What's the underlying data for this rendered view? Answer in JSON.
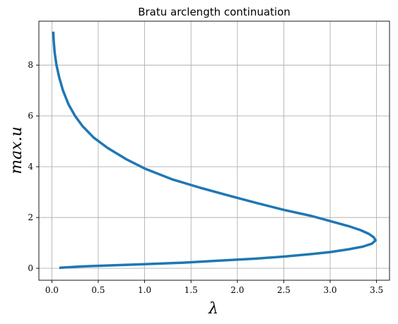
{
  "chart_data": {
    "type": "line",
    "title": "Bratu arclength continuation",
    "xlabel": "λ",
    "ylabel": "max.u",
    "xlim": [
      -0.14,
      3.64
    ],
    "ylim": [
      -0.47,
      9.73
    ],
    "xticks": [
      0.0,
      0.5,
      1.0,
      1.5,
      2.0,
      2.5,
      3.0,
      3.5
    ],
    "xtick_labels": [
      "0.0",
      "0.5",
      "1.0",
      "1.5",
      "2.0",
      "2.5",
      "3.0",
      "3.5"
    ],
    "yticks": [
      0,
      2,
      4,
      6,
      8
    ],
    "ytick_labels": [
      "0",
      "2",
      "4",
      "6",
      "8"
    ],
    "grid": true,
    "line_color": "#1f77b4",
    "series": [
      {
        "x": [
          0.08,
          0.3,
          0.6,
          1.0,
          1.4,
          1.8,
          2.2,
          2.5,
          2.8,
          3.0,
          3.2,
          3.35,
          3.45,
          3.49,
          3.47,
          3.42,
          3.33,
          3.2,
          3.0,
          2.8,
          2.5,
          2.2,
          1.9,
          1.6,
          1.3,
          1.0,
          0.8,
          0.6,
          0.45,
          0.33,
          0.25,
          0.18,
          0.12,
          0.08,
          0.05,
          0.03,
          0.02,
          0.015
        ],
        "y": [
          0.02,
          0.07,
          0.11,
          0.16,
          0.22,
          0.3,
          0.38,
          0.46,
          0.56,
          0.64,
          0.75,
          0.85,
          0.97,
          1.1,
          1.22,
          1.35,
          1.5,
          1.66,
          1.86,
          2.06,
          2.3,
          2.58,
          2.87,
          3.17,
          3.5,
          3.93,
          4.3,
          4.74,
          5.15,
          5.6,
          6.0,
          6.45,
          7.0,
          7.5,
          8.0,
          8.5,
          8.95,
          9.32
        ]
      }
    ]
  }
}
